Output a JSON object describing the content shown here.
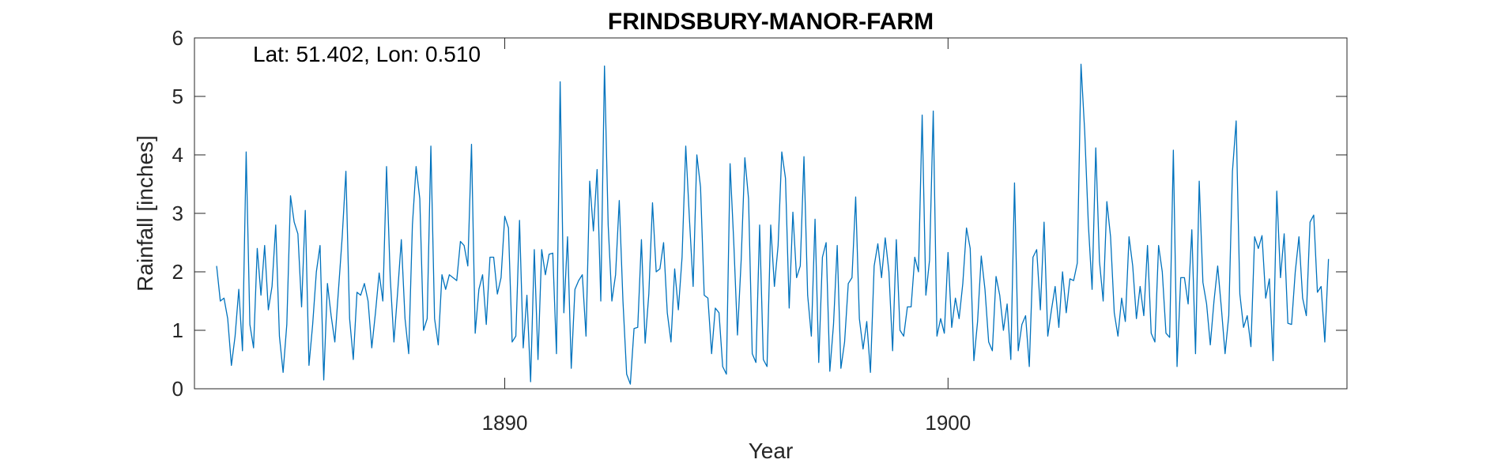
{
  "chart_data": {
    "type": "line",
    "title": "FRINDSBURY-MANOR-FARM",
    "annotation": "Lat: 51.402, Lon: 0.510",
    "xlabel": "Year",
    "ylabel": "Rainfall [inches]",
    "xlim": [
      1883.0,
      1909.0
    ],
    "ylim": [
      0,
      6
    ],
    "x_ticks": [
      1890,
      1900
    ],
    "y_ticks": [
      0,
      1,
      2,
      3,
      4,
      5,
      6
    ],
    "grid": false,
    "x_start": 1883.5,
    "x_step": 0.0833333,
    "series": [
      {
        "color": "#0072BD",
        "values": [
          2.1,
          1.5,
          1.55,
          1.2,
          0.4,
          0.9,
          1.7,
          0.65,
          4.05,
          1.1,
          0.7,
          2.4,
          1.6,
          2.45,
          1.35,
          1.75,
          2.8,
          0.9,
          0.28,
          1.1,
          3.3,
          2.85,
          2.65,
          1.4,
          3.05,
          0.4,
          1.1,
          2.0,
          2.45,
          0.15,
          1.8,
          1.25,
          0.8,
          1.7,
          2.6,
          3.72,
          1.2,
          0.5,
          1.65,
          1.6,
          1.8,
          1.5,
          0.7,
          1.3,
          1.98,
          1.5,
          3.8,
          1.9,
          0.8,
          1.65,
          2.55,
          1.2,
          0.6,
          2.8,
          3.8,
          3.25,
          1.0,
          1.2,
          4.15,
          1.2,
          0.75,
          1.95,
          1.7,
          1.95,
          1.9,
          1.85,
          2.52,
          2.45,
          2.1,
          4.18,
          0.95,
          1.7,
          1.95,
          1.1,
          2.25,
          2.25,
          1.62,
          1.9,
          2.95,
          2.75,
          0.8,
          0.9,
          2.88,
          0.7,
          1.6,
          0.12,
          2.38,
          0.5,
          2.38,
          1.95,
          2.3,
          2.32,
          0.6,
          5.25,
          1.3,
          2.6,
          0.35,
          1.7,
          1.85,
          1.95,
          0.9,
          3.55,
          2.7,
          3.75,
          1.5,
          5.52,
          2.8,
          1.5,
          1.95,
          3.22,
          1.5,
          0.25,
          0.08,
          1.03,
          1.05,
          2.55,
          0.78,
          1.62,
          3.18,
          2.0,
          2.05,
          2.5,
          1.3,
          0.8,
          2.05,
          1.35,
          2.25,
          4.15,
          2.9,
          1.75,
          4.0,
          3.45,
          1.6,
          1.55,
          0.6,
          1.38,
          1.3,
          0.38,
          0.25,
          3.85,
          2.5,
          0.92,
          2.2,
          3.95,
          3.25,
          0.6,
          0.45,
          2.8,
          0.5,
          0.38,
          2.8,
          1.75,
          2.45,
          4.05,
          3.6,
          1.38,
          3.02,
          1.9,
          2.1,
          3.97,
          1.6,
          0.9,
          2.9,
          0.45,
          2.25,
          2.5,
          0.3,
          1.1,
          2.45,
          0.35,
          0.8,
          1.8,
          1.9,
          3.28,
          1.2,
          0.68,
          1.15,
          0.28,
          2.1,
          2.48,
          1.9,
          2.58,
          2.0,
          0.65,
          2.55,
          1.0,
          0.9,
          1.4,
          1.4,
          2.25,
          2.0,
          4.68,
          1.6,
          2.2,
          4.75,
          0.9,
          1.2,
          0.95,
          2.33,
          1.05,
          1.55,
          1.2,
          1.8,
          2.75,
          2.4,
          0.48,
          1.15,
          2.27,
          1.7,
          0.8,
          0.65,
          1.92,
          1.6,
          1.0,
          1.45,
          0.5,
          3.52,
          0.65,
          1.1,
          1.25,
          0.38,
          2.25,
          2.38,
          1.35,
          2.85,
          0.9,
          1.35,
          1.75,
          1.05,
          2.0,
          1.3,
          1.88,
          1.85,
          2.15,
          5.55,
          4.4,
          2.8,
          1.7,
          4.12,
          2.18,
          1.5,
          3.2,
          2.6,
          1.3,
          0.9,
          1.55,
          1.15,
          2.6,
          2.1,
          1.2,
          1.75,
          1.25,
          2.45,
          0.95,
          0.8,
          2.45,
          2.0,
          0.95,
          0.88,
          4.08,
          0.38,
          1.9,
          1.9,
          1.45,
          2.72,
          0.6,
          3.55,
          1.82,
          1.45,
          0.75,
          1.5,
          2.1,
          1.38,
          0.6,
          1.25,
          3.72,
          4.58,
          1.62,
          1.05,
          1.25,
          0.72,
          2.6,
          2.4,
          2.62,
          1.55,
          1.88,
          0.48,
          3.38,
          1.9,
          2.65,
          1.12,
          1.1,
          2.0,
          2.6,
          1.55,
          1.25,
          2.85,
          2.97,
          1.65,
          1.75,
          0.8,
          2.22
        ]
      }
    ]
  }
}
